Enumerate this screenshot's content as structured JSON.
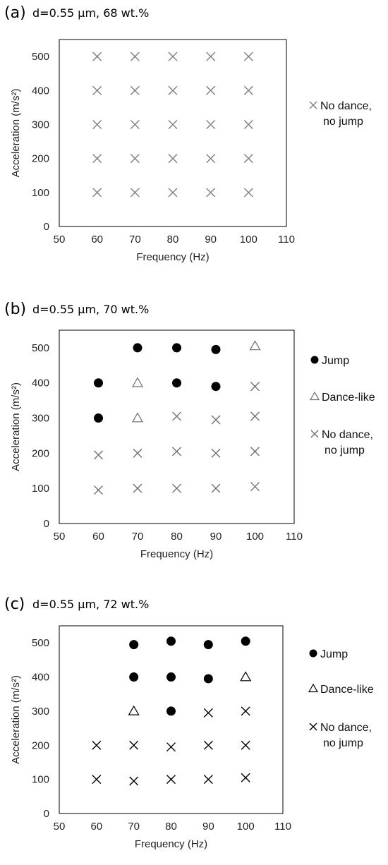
{
  "chart_data": [
    {
      "type": "scatter",
      "panel_label": "(a)",
      "title": "d=0.55 μm, 68 wt.%",
      "xlabel": "Frequency (Hz)",
      "ylabel": "Acceleration (m/s²)",
      "xlim": [
        50,
        110
      ],
      "ylim": [
        0,
        550
      ],
      "xticks": [
        "50",
        "60",
        "70",
        "80",
        "90",
        "100",
        "110"
      ],
      "yticks": [
        "0",
        "100",
        "200",
        "300",
        "400",
        "500"
      ],
      "mark_color": "#7f7f7f",
      "series": [
        {
          "name": "No dance,\nno jump",
          "marker": "cross",
          "points": [
            [
              60,
              100
            ],
            [
              60,
              200
            ],
            [
              60,
              300
            ],
            [
              60,
              400
            ],
            [
              60,
              500
            ],
            [
              70,
              100
            ],
            [
              70,
              200
            ],
            [
              70,
              300
            ],
            [
              70,
              400
            ],
            [
              70,
              500
            ],
            [
              80,
              100
            ],
            [
              80,
              200
            ],
            [
              80,
              300
            ],
            [
              80,
              400
            ],
            [
              80,
              500
            ],
            [
              90,
              100
            ],
            [
              90,
              200
            ],
            [
              90,
              300
            ],
            [
              90,
              400
            ],
            [
              90,
              500
            ],
            [
              100,
              100
            ],
            [
              100,
              200
            ],
            [
              100,
              300
            ],
            [
              100,
              400
            ],
            [
              100,
              500
            ]
          ]
        }
      ]
    },
    {
      "type": "scatter",
      "panel_label": "(b)",
      "title": "d=0.55 μm, 70 wt.%",
      "xlabel": "Frequency (Hz)",
      "ylabel": "Acceleration (m/s²)",
      "xlim": [
        50,
        110
      ],
      "ylim": [
        0,
        550
      ],
      "xticks": [
        "50",
        "60",
        "70",
        "80",
        "90",
        "100",
        "110"
      ],
      "yticks": [
        "0",
        "100",
        "200",
        "300",
        "400",
        "500"
      ],
      "mark_color": "#6f6f6f",
      "series": [
        {
          "name": "Jump",
          "marker": "circle",
          "points": [
            [
              60,
              300
            ],
            [
              60,
              400
            ],
            [
              70,
              500
            ],
            [
              80,
              400
            ],
            [
              80,
              500
            ],
            [
              90,
              390
            ],
            [
              90,
              495
            ]
          ]
        },
        {
          "name": "Dance-like",
          "marker": "triangle",
          "points": [
            [
              70,
              300
            ],
            [
              70,
              400
            ],
            [
              100,
              505
            ]
          ]
        },
        {
          "name": "No dance,\nno jump",
          "marker": "cross",
          "points": [
            [
              60,
              95
            ],
            [
              60,
              195
            ],
            [
              70,
              100
            ],
            [
              70,
              200
            ],
            [
              80,
              100
            ],
            [
              80,
              205
            ],
            [
              80,
              305
            ],
            [
              90,
              100
            ],
            [
              90,
              200
            ],
            [
              90,
              295
            ],
            [
              100,
              105
            ],
            [
              100,
              205
            ],
            [
              100,
              305
            ],
            [
              100,
              390
            ]
          ]
        }
      ]
    },
    {
      "type": "scatter",
      "panel_label": "(c)",
      "title": "d=0.55 μm, 72 wt.%",
      "xlabel": "Frequency (Hz)",
      "ylabel": "Acceleration (m/s²)",
      "xlim": [
        50,
        110
      ],
      "ylim": [
        0,
        550
      ],
      "xticks": [
        "50",
        "60",
        "70",
        "80",
        "90",
        "100",
        "110"
      ],
      "yticks": [
        "0",
        "100",
        "200",
        "300",
        "400",
        "500"
      ],
      "mark_color": "#000000",
      "series": [
        {
          "name": "Jump",
          "marker": "circle",
          "points": [
            [
              70,
              400
            ],
            [
              70,
              495
            ],
            [
              80,
              300
            ],
            [
              80,
              400
            ],
            [
              80,
              505
            ],
            [
              90,
              395
            ],
            [
              90,
              495
            ],
            [
              100,
              505
            ]
          ]
        },
        {
          "name": "Dance-like",
          "marker": "triangle",
          "points": [
            [
              70,
              300
            ],
            [
              100,
              400
            ]
          ]
        },
        {
          "name": "No dance,\nno jump",
          "marker": "cross",
          "points": [
            [
              60,
              100
            ],
            [
              60,
              200
            ],
            [
              70,
              95
            ],
            [
              70,
              200
            ],
            [
              80,
              100
            ],
            [
              80,
              195
            ],
            [
              90,
              100
            ],
            [
              90,
              200
            ],
            [
              90,
              295
            ],
            [
              100,
              105
            ],
            [
              100,
              200
            ],
            [
              100,
              300
            ]
          ]
        }
      ]
    }
  ]
}
